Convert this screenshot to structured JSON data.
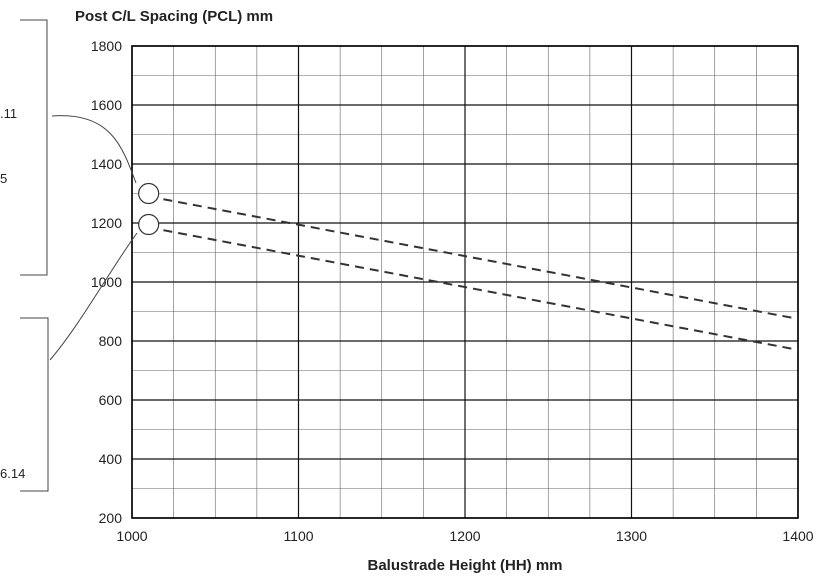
{
  "chart_data": {
    "type": "line",
    "title": "Post C/L Spacing (PCL) mm",
    "xlabel": "Balustrade Height (HH) mm",
    "ylabel": "",
    "xlim": [
      1000,
      1400
    ],
    "ylim": [
      200,
      1800
    ],
    "x_ticks": [
      "1000",
      "1100",
      "1200",
      "1300",
      "1400"
    ],
    "y_ticks": [
      "200",
      "400",
      "600",
      "800",
      "1000",
      "1200",
      "1400",
      "1600",
      "1800"
    ],
    "grid": true,
    "minor_grid": {
      "x_step": 25,
      "y_step": 100
    },
    "series": [
      {
        "x": [
          1010,
          1400
        ],
        "y": [
          1290,
          875
        ],
        "style": "dashed"
      },
      {
        "x": [
          1010,
          1400
        ],
        "y": [
          1185,
          770
        ],
        "style": "dashed"
      }
    ],
    "annotations": {
      "circled_points": [
        [
          1010,
          1300
        ],
        [
          1010,
          1195
        ]
      ],
      "left_margin_fragments": [
        ".11",
        "5",
        "6.14"
      ]
    }
  }
}
